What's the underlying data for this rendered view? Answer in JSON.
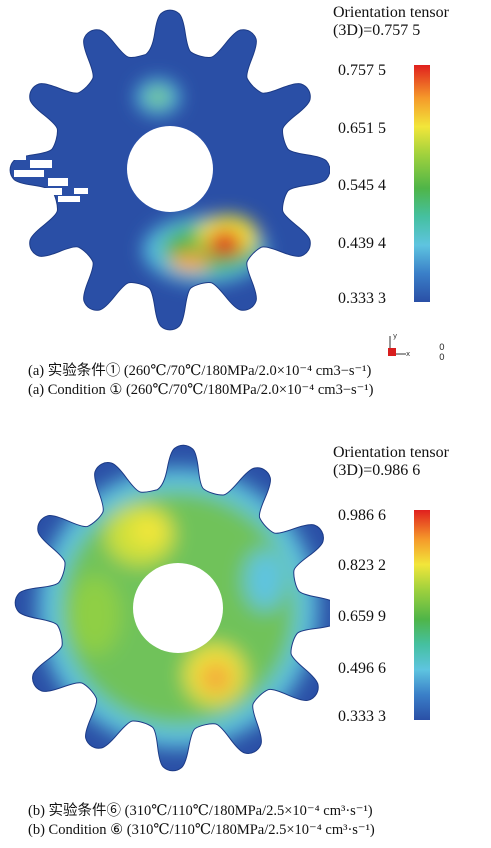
{
  "panel_a": {
    "legend": {
      "title_line1": "Orientation tensor",
      "title_line2": "(3D)=0.757 5",
      "ticks": [
        "0.757 5",
        "0.651 5",
        "0.545 4",
        "0.439 4",
        "0.333 3"
      ]
    },
    "axis_indicator": {
      "y": "y",
      "x": "x",
      "z1": "0",
      "z2": "0"
    },
    "caption_cn": "(a) 实验条件① (260℃/70℃/180MPa/2.0×10⁻⁴ cm3−s⁻¹)",
    "caption_en": "(a) Condition ① (260℃/70℃/180MPa/2.0×10⁻⁴ cm3−s⁻¹)"
  },
  "panel_b": {
    "legend": {
      "title_line1": "Orientation tensor",
      "title_line2": "(3D)=0.986 6",
      "ticks": [
        "0.986 6",
        "0.823 2",
        "0.659 9",
        "0.496 6",
        "0.333 3"
      ]
    },
    "caption_cn": "(b) 实验条件⑥ (310℃/110℃/180MPa/2.5×10⁻⁴ cm³·s⁻¹)",
    "caption_en": "(b) Condition ⑥ (310℃/110℃/180MPa/2.5×10⁻⁴ cm³·s⁻¹)"
  },
  "colors": {
    "scale_low": "#2a4fa6",
    "scale_cyan": "#5ec4e0",
    "scale_green": "#4fb548",
    "scale_yellow": "#f2e63a",
    "scale_high": "#e0201e"
  }
}
